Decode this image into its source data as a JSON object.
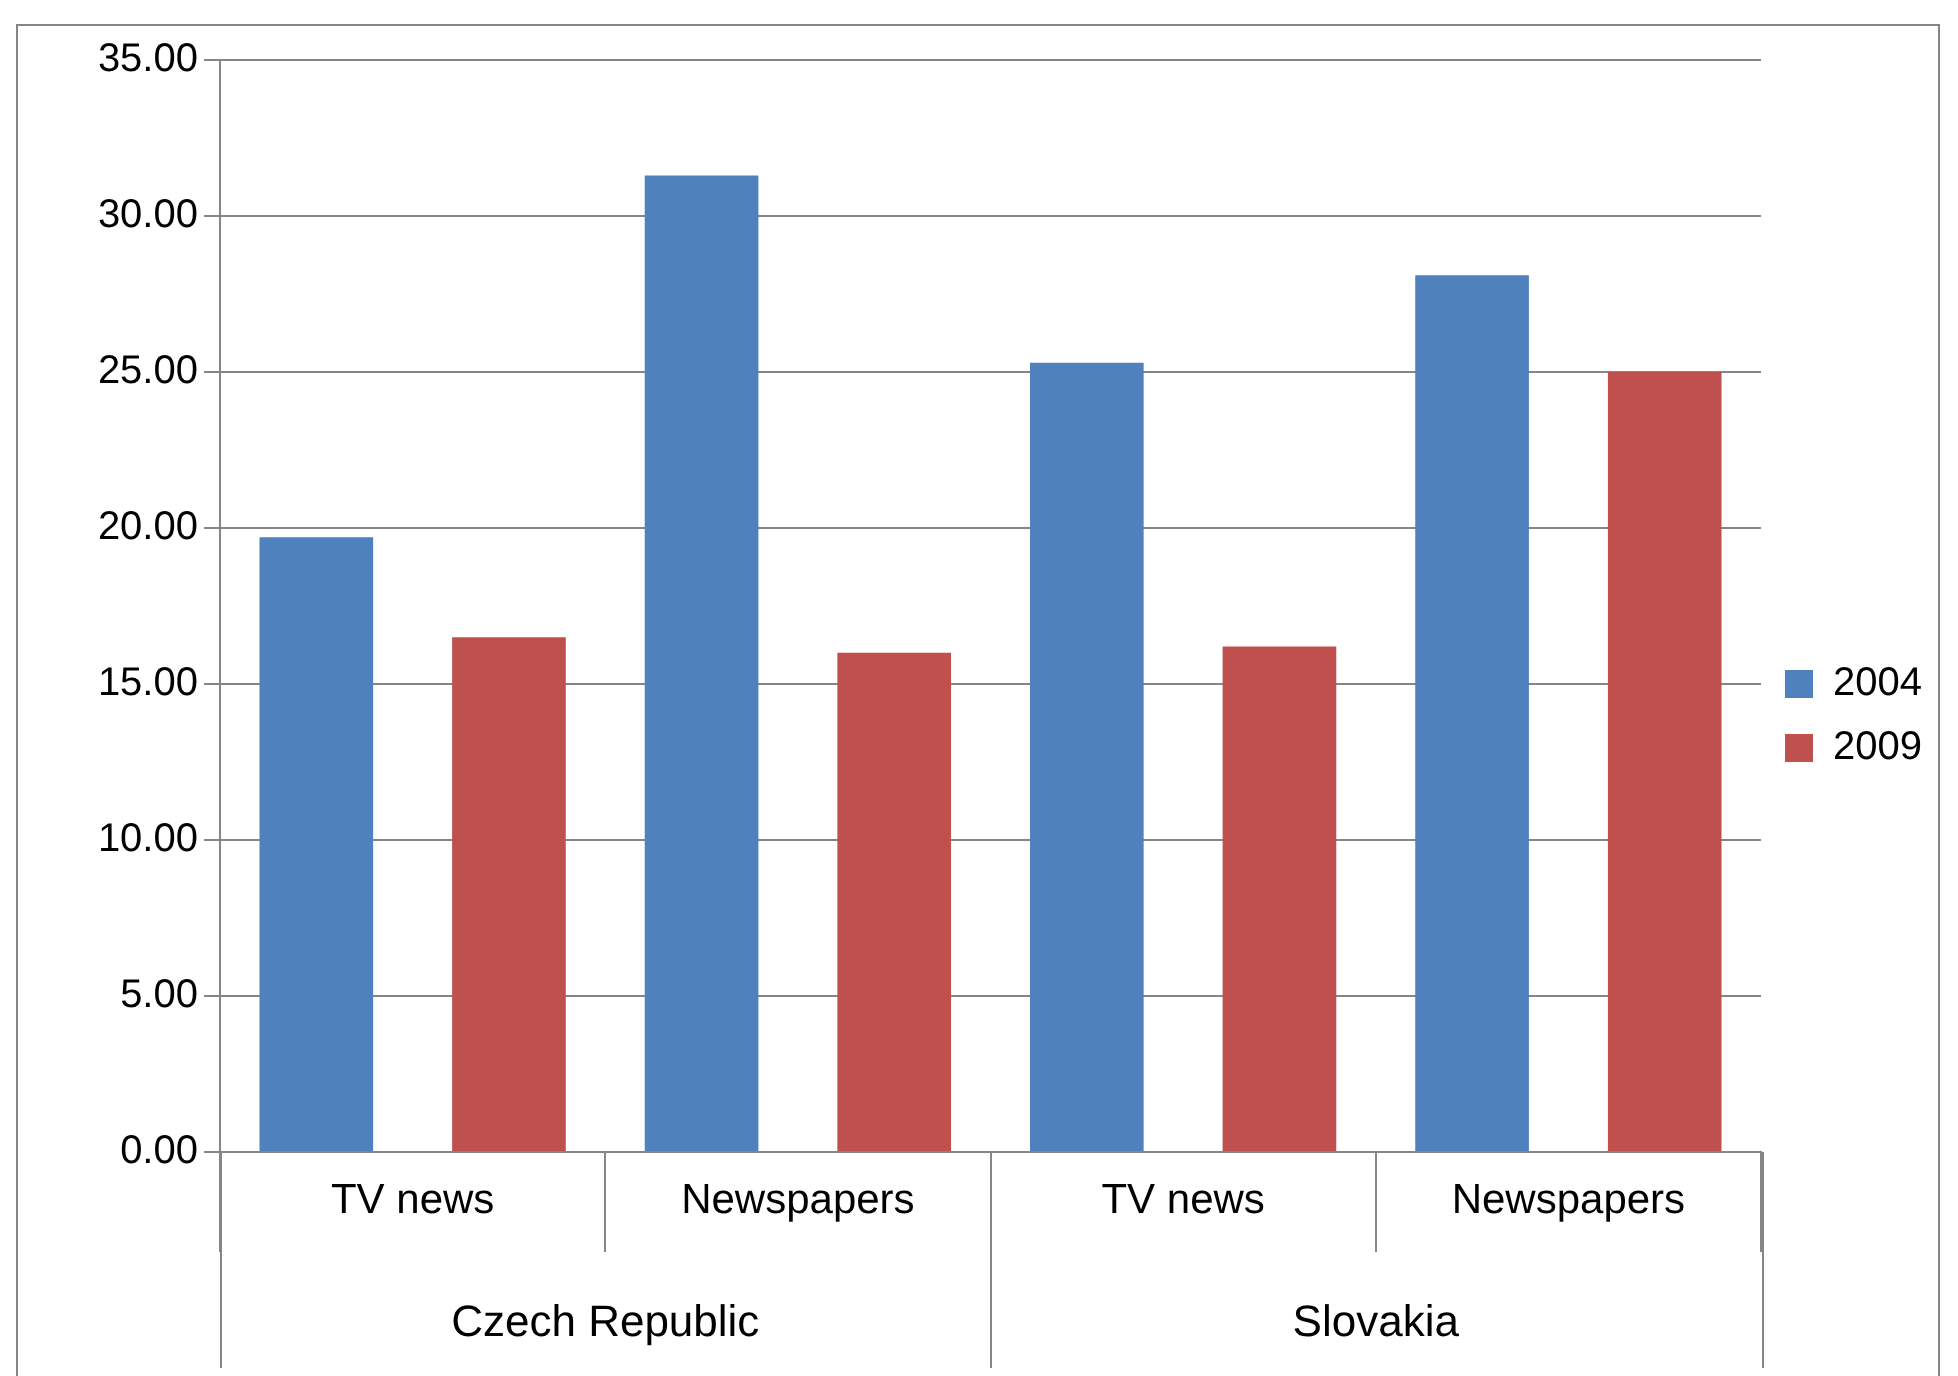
{
  "chart_data": {
    "type": "bar",
    "categories": [
      "TV news",
      "Newspapers",
      "TV news",
      "Newspapers"
    ],
    "series": [
      {
        "name": "2004",
        "color": "#4f81bd",
        "values": [
          19.7,
          31.3,
          25.3,
          28.1
        ]
      },
      {
        "name": "2009",
        "color": "#c0504d",
        "values": [
          16.5,
          16.0,
          16.2,
          25.0
        ]
      }
    ],
    "ylim": [
      0,
      35
    ],
    "yticks": [
      {
        "value": 0,
        "label": "0.00"
      },
      {
        "value": 5,
        "label": "5.00"
      },
      {
        "value": 10,
        "label": "10.00"
      },
      {
        "value": 15,
        "label": "15.00"
      },
      {
        "value": 20,
        "label": "20.00"
      },
      {
        "value": 25,
        "label": "25.00"
      },
      {
        "value": 30,
        "label": "30.00"
      },
      {
        "value": 35,
        "label": "35.00"
      }
    ],
    "annotations": [
      "Czech Republic",
      "Slovakia"
    ],
    "grid": "y",
    "legend": "right"
  }
}
